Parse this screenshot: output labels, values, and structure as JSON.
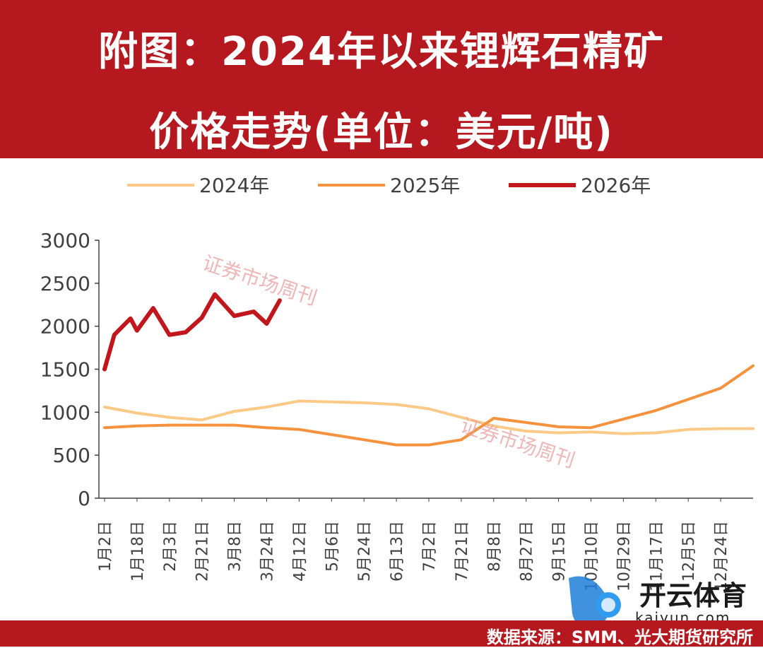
{
  "title_line1": "附图：2024年以来锂辉石精矿",
  "title_line2": "价格走势(单位：美元/吨)",
  "source": "数据来源：SMM、光大期货研究所",
  "watermark": "证券市场周刊",
  "logo": {
    "text": "开云体育",
    "url": "kaiyun.com"
  },
  "colors": {
    "header": "#b5181e",
    "s2024": "#fcc987",
    "s2025": "#f5923e",
    "s2026": "#c0161c",
    "axis": "#404040"
  },
  "chart_data": {
    "type": "line",
    "title": "附图：2024年以来锂辉石精矿价格走势(单位：美元/吨)",
    "xlabel": "",
    "ylabel": "",
    "ylim": [
      0,
      3000
    ],
    "yticks": [
      0,
      500,
      1000,
      1500,
      2000,
      2500,
      3000
    ],
    "grid": false,
    "legend": "top",
    "x_ticks": [
      "1月2日",
      "1月18日",
      "2月3日",
      "2月21日",
      "3月8日",
      "3月24日",
      "4月12日",
      "5月6日",
      "5月24日",
      "6月13日",
      "7月2日",
      "7月21日",
      "8月8日",
      "8月27日",
      "9月15日",
      "10月10日",
      "10月29日",
      "11月17日",
      "12月5日",
      "12月24日"
    ],
    "series": [
      {
        "name": "2024年",
        "x": [
          0,
          1,
          2,
          3,
          4,
          5,
          6,
          7,
          8,
          9,
          10,
          11,
          12,
          13,
          14,
          15,
          16,
          17,
          18,
          19,
          20
        ],
        "values": [
          1060,
          990,
          940,
          910,
          1010,
          1060,
          1130,
          1120,
          1110,
          1090,
          1040,
          940,
          840,
          780,
          760,
          770,
          750,
          760,
          800,
          810,
          810
        ]
      },
      {
        "name": "2025年",
        "x": [
          0,
          1,
          2,
          3,
          4,
          5,
          6,
          7,
          8,
          9,
          10,
          11,
          12,
          13,
          14,
          15,
          16,
          17,
          18,
          19,
          20
        ],
        "values": [
          820,
          840,
          850,
          850,
          850,
          820,
          800,
          740,
          680,
          620,
          620,
          680,
          930,
          880,
          830,
          820,
          920,
          1020,
          1150,
          1280,
          1540
        ]
      },
      {
        "name": "2026年",
        "x": [
          0,
          0.3,
          0.8,
          1.0,
          1.5,
          2.0,
          2.5,
          3.0,
          3.4,
          4.0,
          4.6,
          5.0,
          5.4
        ],
        "values": [
          1500,
          1900,
          2090,
          1950,
          2210,
          1900,
          1930,
          2100,
          2370,
          2120,
          2170,
          2030,
          2300
        ]
      }
    ]
  }
}
